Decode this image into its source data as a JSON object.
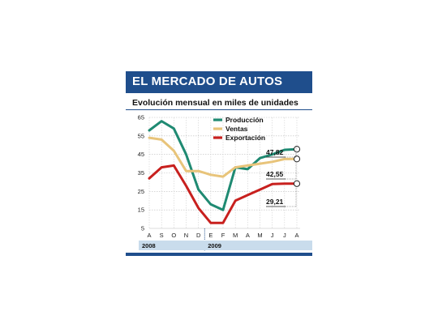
{
  "header": {
    "title": "EL MERCADO DE AUTOS",
    "subtitle": "Evolución mensual en miles de unidades"
  },
  "colors": {
    "title_bg": "#1f4e8c",
    "produccion": "#1f8a72",
    "ventas": "#e8c47a",
    "exportacion": "#c8201e",
    "year_band": "#c9dcec"
  },
  "chart_data": {
    "type": "line",
    "x": [
      "A",
      "S",
      "O",
      "N",
      "D",
      "E",
      "F",
      "M",
      "A",
      "M",
      "J",
      "J",
      "A"
    ],
    "years": [
      {
        "label": "2008",
        "start": 0,
        "end": 4
      },
      {
        "label": "2009",
        "start": 5,
        "end": 12
      }
    ],
    "ylim": [
      5,
      65
    ],
    "yticks": [
      5,
      15,
      25,
      35,
      45,
      55,
      65
    ],
    "grid": true,
    "legend": "top-center",
    "series": [
      {
        "name": "Producción",
        "color": "#1f8a72",
        "values": [
          58,
          63,
          59,
          45,
          26,
          18,
          15,
          38,
          37,
          43,
          45,
          47.5,
          47.82
        ],
        "end_label": "47,82"
      },
      {
        "name": "Ventas",
        "color": "#e8c47a",
        "values": [
          54,
          53,
          47,
          36,
          36,
          34,
          33,
          38,
          39,
          40,
          41,
          42.5,
          42.55
        ],
        "end_label": "42,55"
      },
      {
        "name": "Exportación",
        "color": "#c8201e",
        "values": [
          32,
          38,
          39,
          28,
          16,
          8,
          8,
          20,
          23,
          26,
          29,
          29.2,
          29.21
        ],
        "end_label": "29,21"
      }
    ]
  }
}
